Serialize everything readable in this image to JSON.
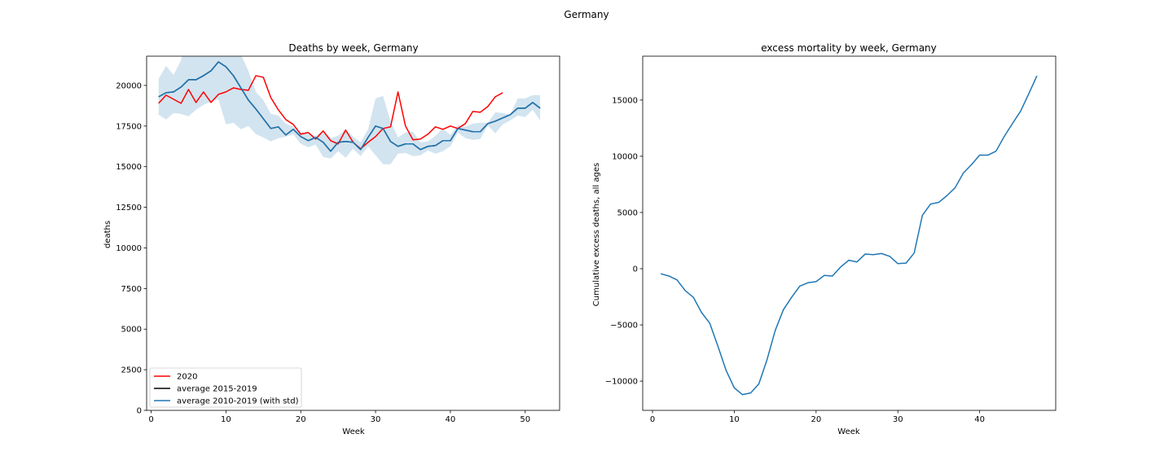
{
  "suptitle": "Germany",
  "chart_data": [
    {
      "type": "line",
      "title": "Deaths by week, Germany",
      "xlabel": "Week",
      "ylabel": "deaths",
      "xlim": [
        -0.6,
        54.6
      ],
      "ylim": [
        0,
        21800
      ],
      "xticks": [
        0,
        10,
        20,
        30,
        40,
        50
      ],
      "yticks": [
        0,
        2500,
        5000,
        7500,
        10000,
        12500,
        15000,
        17500,
        20000
      ],
      "legend": "lower-left",
      "series": [
        {
          "name": "2020",
          "color": "#ff0000",
          "x": [
            1,
            2,
            3,
            4,
            5,
            6,
            7,
            8,
            9,
            10,
            11,
            12,
            13,
            14,
            15,
            16,
            17,
            18,
            19,
            20,
            21,
            22,
            23,
            24,
            25,
            26,
            27,
            28,
            29,
            30,
            31,
            32,
            33,
            34,
            35,
            36,
            37,
            38,
            39,
            40,
            41,
            42,
            43,
            44,
            45,
            46,
            47
          ],
          "values": [
            18900,
            19400,
            19150,
            18900,
            19750,
            18950,
            19600,
            18950,
            19450,
            19600,
            19850,
            19750,
            19700,
            20600,
            20500,
            19250,
            18500,
            17900,
            17600,
            17000,
            17100,
            16700,
            17200,
            16600,
            16400,
            17250,
            16500,
            16100,
            16500,
            16850,
            17350,
            17450,
            19600,
            17500,
            16650,
            16700,
            17000,
            17450,
            17300,
            17500,
            17350,
            17650,
            18400,
            18350,
            18700,
            19300,
            19550
          ]
        },
        {
          "name": "average 2015-2019",
          "color": "#000000",
          "x": [
            1,
            2,
            3,
            4,
            5,
            6,
            7,
            8,
            9,
            10,
            11,
            12,
            13,
            14,
            15,
            16,
            17,
            18,
            19,
            20,
            21,
            22,
            23,
            24,
            25,
            26,
            27,
            28,
            29,
            30,
            31,
            32,
            33,
            34,
            35,
            36,
            37,
            38,
            39,
            40,
            41,
            42,
            43,
            44,
            45,
            46,
            47,
            48,
            49,
            50,
            51,
            52
          ],
          "values": [
            19300,
            19550,
            19600,
            19900,
            20350,
            20350,
            20600,
            20900,
            21450,
            21150,
            20600,
            19850,
            19100,
            18550,
            17950,
            17350,
            17450,
            16950,
            17300,
            16850,
            16600,
            16800,
            16500,
            15950,
            16500,
            16550,
            16500,
            16050,
            16800,
            17500,
            17350,
            16550,
            16250,
            16400,
            16400,
            16050,
            16250,
            16300,
            16600,
            16600,
            17350,
            17250,
            17150,
            17150,
            17650,
            17800,
            18000,
            18200,
            18600,
            18600,
            18950,
            18600
          ]
        },
        {
          "name": "average 2010-2019 (with std)",
          "color": "#1f77b4",
          "x": [
            1,
            2,
            3,
            4,
            5,
            6,
            7,
            8,
            9,
            10,
            11,
            12,
            13,
            14,
            15,
            16,
            17,
            18,
            19,
            20,
            21,
            22,
            23,
            24,
            25,
            26,
            27,
            28,
            29,
            30,
            31,
            32,
            33,
            34,
            35,
            36,
            37,
            38,
            39,
            40,
            41,
            42,
            43,
            44,
            45,
            46,
            47,
            48,
            49,
            50,
            51,
            52
          ],
          "values": [
            19300,
            19550,
            19600,
            19900,
            20350,
            20350,
            20600,
            20900,
            21450,
            21150,
            20600,
            19850,
            19100,
            18550,
            17950,
            17350,
            17450,
            16950,
            17300,
            16850,
            16600,
            16800,
            16500,
            15950,
            16500,
            16550,
            16500,
            16050,
            16800,
            17500,
            17350,
            16550,
            16250,
            16400,
            16400,
            16050,
            16250,
            16300,
            16600,
            16600,
            17350,
            17250,
            17150,
            17150,
            17650,
            17800,
            18000,
            18200,
            18600,
            18600,
            18950,
            18600
          ],
          "upper": [
            20400,
            21200,
            20650,
            21550,
            23400,
            23100,
            24350,
            24000,
            25200,
            23600,
            23150,
            21900,
            20900,
            19600,
            19100,
            18250,
            18150,
            17650,
            17450,
            17150,
            17000,
            16900,
            17200,
            16750,
            16900,
            17300,
            16850,
            16500,
            17300,
            19200,
            19350,
            17800,
            16800,
            17100,
            17150,
            16500,
            16550,
            16900,
            17350,
            16950,
            17550,
            17450,
            17650,
            17700,
            17700,
            18350,
            18300,
            18200,
            19200,
            19200,
            19400,
            19400
          ],
          "lower": [
            18200,
            17900,
            18300,
            18250,
            18100,
            18500,
            18800,
            19000,
            19150,
            17600,
            17700,
            17300,
            17500,
            17000,
            16800,
            16550,
            16750,
            16850,
            17000,
            16400,
            16200,
            16350,
            15600,
            15500,
            15950,
            15550,
            16100,
            15650,
            16250,
            15700,
            15150,
            15150,
            15800,
            15850,
            15650,
            15700,
            16000,
            15800,
            15950,
            16250,
            17100,
            16750,
            16650,
            16700,
            17550,
            17050,
            17600,
            17850,
            18150,
            18050,
            18500,
            17850
          ]
        }
      ]
    },
    {
      "type": "line",
      "title": "excess mortality by week, Germany",
      "xlabel": "Week",
      "ylabel": "Cumulative excess deaths, all ages",
      "xlim": [
        -1.2,
        49.3
      ],
      "ylim": [
        -12600,
        18900
      ],
      "xticks": [
        0,
        10,
        20,
        30,
        40
      ],
      "yticks": [
        -10000,
        -5000,
        0,
        5000,
        10000,
        15000
      ],
      "series": [
        {
          "name": "",
          "color": "#1f77b4",
          "x": [
            1,
            2,
            3,
            4,
            5,
            6,
            7,
            8,
            9,
            10,
            11,
            12,
            13,
            14,
            15,
            16,
            17,
            18,
            19,
            20,
            21,
            22,
            23,
            24,
            25,
            26,
            27,
            28,
            29,
            30,
            31,
            32,
            33,
            34,
            35,
            36,
            37,
            38,
            39,
            40,
            41,
            42,
            43,
            44,
            45,
            46,
            47
          ],
          "values": [
            -450,
            -650,
            -1000,
            -1950,
            -2550,
            -3900,
            -4850,
            -6900,
            -9050,
            -10600,
            -11200,
            -11050,
            -10250,
            -8100,
            -5500,
            -3650,
            -2550,
            -1550,
            -1250,
            -1150,
            -600,
            -650,
            150,
            750,
            600,
            1300,
            1250,
            1350,
            1100,
            450,
            500,
            1400,
            4750,
            5750,
            5900,
            6500,
            7200,
            8500,
            9250,
            10100,
            10100,
            10450,
            11750,
            12900,
            14000,
            15550,
            17150
          ]
        }
      ]
    }
  ]
}
